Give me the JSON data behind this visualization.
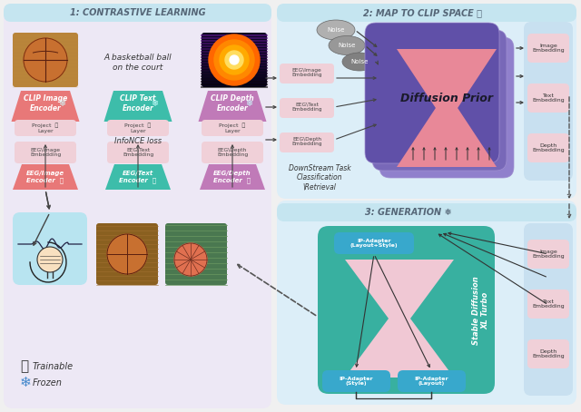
{
  "title1": "1: CONTRASTIVE LEARNING",
  "title2": "2: MAP TO CLIP SPACE 🔥",
  "title3": "3: GENERATION ❅",
  "bg_color": "#f0f0f0",
  "panel1_bg": "#ede8f5",
  "panel2_bg": "#dceef8",
  "panel3_bg": "#dceef8",
  "title_bar": "#c5e5f0",
  "pink_light": "#f5c6cb",
  "pink_med": "#e88898",
  "pink_box": "#f0d0d8",
  "red_enc": "#e87878",
  "teal_enc": "#3dbdaa",
  "purple_enc": "#c07ab8",
  "purple_dp1": "#9080cc",
  "purple_dp2": "#7868b8",
  "purple_dp3": "#6050a8",
  "teal_gen": "#38b0a0",
  "gray_n1": "#b0b0b0",
  "gray_n2": "#989898",
  "gray_n3": "#808080",
  "blue_adapter": "#38a8cc",
  "embed_box": "#f0d0d8",
  "output_panel": "#c8e0f0"
}
